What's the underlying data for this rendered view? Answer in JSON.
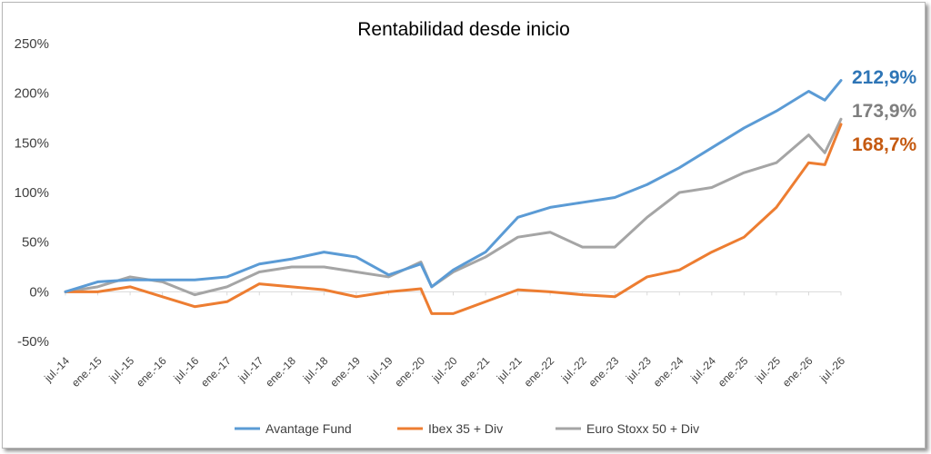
{
  "chart_data": {
    "type": "line",
    "title": "Rentabilidad desde inicio",
    "xlabel": "",
    "ylabel": "",
    "ylim": [
      -50,
      250
    ],
    "y_ticks": [
      "250%",
      "200%",
      "150%",
      "100%",
      "50%",
      "0%",
      "-50%"
    ],
    "y_tick_values": [
      250,
      200,
      150,
      100,
      50,
      0,
      -50
    ],
    "x_ticks": [
      "jul.-14",
      "ene.-15",
      "jul.-15",
      "ene.-16",
      "jul.-16",
      "ene.-17",
      "jul.-17",
      "ene.-18",
      "jul.-18",
      "ene.-19",
      "jul.-19",
      "ene.-20",
      "jul.-20",
      "ene.-21",
      "jul.-21",
      "ene.-22",
      "jul.-22",
      "ene.-23",
      "jul.-23",
      "ene.-24",
      "jul.-24",
      "ene.-25",
      "jul.-25",
      "ene.-26",
      "jul.-26"
    ],
    "x": [
      "jul.-14",
      "ene.-15",
      "jul.-15",
      "ene.-16",
      "jul.-16",
      "ene.-17",
      "jul.-17",
      "ene.-18",
      "jul.-18",
      "ene.-19",
      "jul.-19",
      "ene.-20",
      "mar.-20",
      "jul.-20",
      "ene.-21",
      "jul.-21",
      "ene.-22",
      "jul.-22",
      "ene.-23",
      "jul.-23",
      "ene.-24",
      "jul.-24",
      "ene.-25",
      "jul.-25",
      "ene.-26",
      "abr.-26",
      "jul.-26"
    ],
    "grid": false,
    "legend_position": "bottom",
    "series": [
      {
        "name": "Avantage Fund",
        "color": "#5b9bd5",
        "values": [
          0,
          10,
          12,
          12,
          12,
          15,
          28,
          33,
          40,
          35,
          17,
          28,
          5,
          22,
          40,
          75,
          85,
          90,
          95,
          108,
          125,
          145,
          165,
          182,
          202,
          193,
          212.9
        ],
        "end_label": "212,9%"
      },
      {
        "name": "Ibex 35 + Div",
        "color": "#ed7d31",
        "values": [
          0,
          0,
          5,
          -5,
          -15,
          -10,
          8,
          5,
          2,
          -5,
          0,
          3,
          -22,
          -22,
          -10,
          2,
          0,
          -3,
          -5,
          15,
          22,
          40,
          55,
          85,
          130,
          128,
          168.7
        ],
        "end_label": "168,7%"
      },
      {
        "name": "Euro Stoxx 50 + Div",
        "color": "#a5a5a5",
        "values": [
          0,
          5,
          15,
          10,
          -3,
          5,
          20,
          25,
          25,
          20,
          15,
          30,
          5,
          20,
          35,
          55,
          60,
          45,
          45,
          75,
          100,
          105,
          120,
          130,
          158,
          140,
          173.9
        ],
        "end_label": "173,9%"
      }
    ]
  }
}
